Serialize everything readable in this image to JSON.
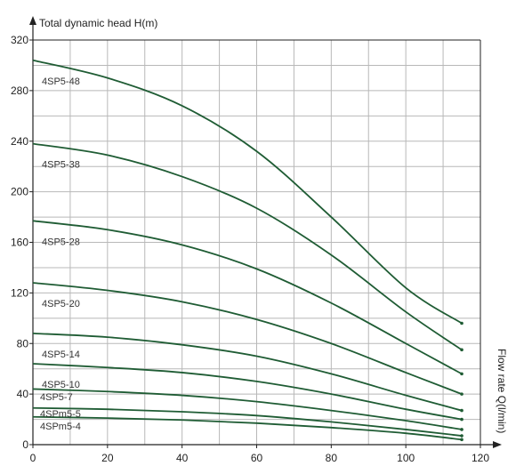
{
  "chart_data": {
    "type": "line",
    "ylabel": "Total dynamic head H(m)",
    "xlabel": "Flow rate Q(l/min)",
    "xlim": [
      0,
      120
    ],
    "ylim": [
      0,
      320
    ],
    "xticks": [
      0,
      20,
      40,
      60,
      80,
      100,
      120
    ],
    "yticks": [
      0,
      40,
      80,
      120,
      160,
      200,
      240,
      280,
      320
    ],
    "grid": true,
    "series": [
      {
        "name": "4SP5-48",
        "x": [
          0,
          20,
          40,
          60,
          80,
          100,
          115
        ],
        "y": [
          304,
          290,
          268,
          232,
          180,
          124,
          96
        ]
      },
      {
        "name": "4SP5-38",
        "x": [
          0,
          20,
          40,
          60,
          80,
          100,
          115
        ],
        "y": [
          238,
          229,
          212,
          187,
          150,
          105,
          75
        ]
      },
      {
        "name": "4SP5-28",
        "x": [
          0,
          20,
          40,
          60,
          80,
          100,
          115
        ],
        "y": [
          177,
          170,
          158,
          139,
          112,
          80,
          56
        ]
      },
      {
        "name": "4SP5-20",
        "x": [
          0,
          20,
          40,
          60,
          80,
          100,
          115
        ],
        "y": [
          128,
          122,
          113,
          99,
          80,
          57,
          40
        ]
      },
      {
        "name": "4SP5-14",
        "x": [
          0,
          20,
          40,
          60,
          80,
          100,
          115
        ],
        "y": [
          88,
          85,
          79,
          70,
          56,
          39,
          27
        ]
      },
      {
        "name": "4SP5-10",
        "x": [
          0,
          20,
          40,
          60,
          80,
          100,
          115
        ],
        "y": [
          64,
          61,
          57,
          50,
          40,
          28,
          20
        ]
      },
      {
        "name": "4SP5-7",
        "x": [
          0,
          20,
          40,
          60,
          80,
          100,
          115
        ],
        "y": [
          44,
          42,
          39,
          34,
          27,
          19,
          12
        ]
      },
      {
        "name": "4SPm5-5",
        "x": [
          0,
          20,
          40,
          60,
          80,
          100,
          115
        ],
        "y": [
          29,
          28,
          26,
          23,
          18,
          12,
          7
        ]
      },
      {
        "name": "4SPm5-4",
        "x": [
          0,
          20,
          40,
          60,
          80,
          100,
          115
        ],
        "y": [
          22,
          21,
          19.5,
          17,
          13.5,
          9,
          4
        ]
      }
    ]
  },
  "colors": {
    "curve": "#1f5c34",
    "grid": "#b8b8b8",
    "axis": "#222222"
  }
}
